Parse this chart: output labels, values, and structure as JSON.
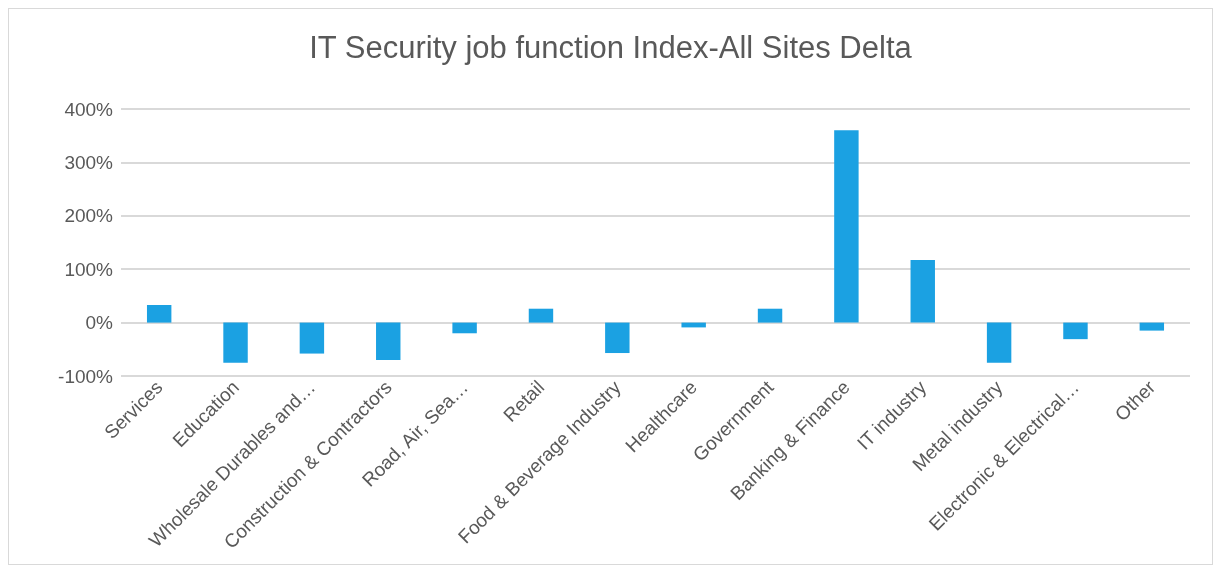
{
  "chart_data": {
    "type": "bar",
    "title": "IT Security job function Index-All Sites Delta",
    "categories": [
      "Services",
      "Education",
      "Wholesale Durables and…",
      "Construction & Contractors",
      "Road, Air, Sea…",
      "Retail",
      "Food & Beverage Industry",
      "Healthcare",
      "Government",
      "Banking & Finance",
      "IT industry",
      "Metal industry",
      "Electronic & Electrical…",
      "Other"
    ],
    "values": [
      33,
      -75,
      -58,
      -70,
      -20,
      26,
      -57,
      -9,
      26,
      360,
      117,
      -75,
      -31,
      -15
    ],
    "color": "#1ba1e2",
    "ylim": [
      -100,
      400
    ],
    "yticks": [
      {
        "value": -100,
        "label": "-100%"
      },
      {
        "value": 0,
        "label": "0%"
      },
      {
        "value": 100,
        "label": "100%"
      },
      {
        "value": 200,
        "label": "200%"
      },
      {
        "value": 300,
        "label": "300%"
      },
      {
        "value": 400,
        "label": "400%"
      }
    ],
    "grid": true
  }
}
